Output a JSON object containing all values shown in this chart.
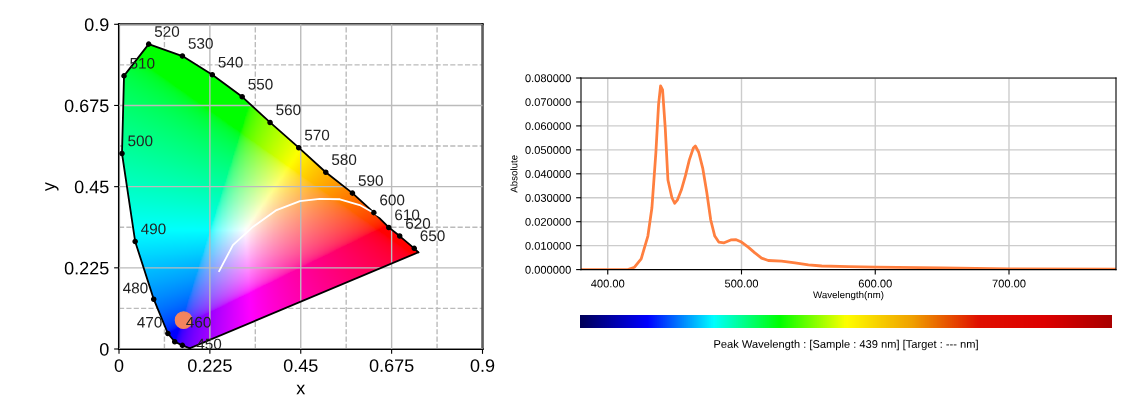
{
  "chart_data": [
    {
      "type": "line",
      "xlabel": "x",
      "ylabel": "y",
      "xlim": [
        0,
        0.9
      ],
      "ylim": [
        0,
        0.9
      ],
      "xticks": [
        0,
        0.225,
        0.45,
        0.675,
        0.9
      ],
      "yticks": [
        0,
        0.225,
        0.45,
        0.675,
        0.9
      ],
      "grid": true,
      "series": [
        {
          "type": "line",
          "color": "#000000",
          "marker": "none",
          "x": [
            0.741,
            0.731,
            0.695,
            0.668,
            0.631,
            0.578,
            0.512,
            0.445,
            0.374,
            0.305,
            0.231,
            0.157,
            0.0735,
            0.0124,
            0.0074
          ],
          "values": [
            0.268,
            0.279,
            0.313,
            0.337,
            0.378,
            0.432,
            0.49,
            0.558,
            0.628,
            0.699,
            0.76,
            0.812,
            0.845,
            0.757,
            0.542
          ]
        },
        {
          "type": "line",
          "color": "#000000",
          "marker": "none",
          "x": [
            0.0074,
            0.04,
            0.086,
            0.121,
            0.138,
            0.157,
            0.175
          ],
          "values": [
            0.542,
            0.298,
            0.138,
            0.043,
            0.02,
            0.01,
            0.002
          ]
        },
        {
          "type": "line",
          "color": "#000000",
          "marker": "none",
          "x": [
            0.175,
            0.741
          ],
          "values": [
            0.002,
            0.268
          ]
        },
        {
          "type": "line",
          "color": "#ffffff",
          "marker": "none",
          "x": [
            0.248,
            0.282,
            0.332,
            0.39,
            0.448,
            0.497,
            0.547,
            0.596,
            0.646
          ],
          "values": [
            0.216,
            0.288,
            0.339,
            0.385,
            0.41,
            0.416,
            0.415,
            0.399,
            0.368
          ]
        },
        {
          "type": "scatter",
          "color": "#000000",
          "marker": "circle",
          "x": [
            0.731,
            0.695,
            0.668,
            0.631,
            0.578,
            0.512,
            0.445,
            0.374,
            0.305,
            0.231,
            0.157,
            0.0735,
            0.0124,
            0.0074,
            0.04,
            0.086,
            0.121,
            0.138,
            0.157
          ],
          "values": [
            0.279,
            0.313,
            0.337,
            0.378,
            0.432,
            0.49,
            0.558,
            0.628,
            0.699,
            0.76,
            0.812,
            0.845,
            0.757,
            0.542,
            0.298,
            0.138,
            0.043,
            0.02,
            0.01
          ]
        },
        {
          "type": "scatter",
          "color": "#f4845f",
          "marker": "circle",
          "x": [
            0.16
          ],
          "values": [
            0.08
          ]
        }
      ],
      "annotations": [
        {
          "text": "520",
          "x": 0.0735,
          "y": 0.845
        },
        {
          "text": "530",
          "x": 0.157,
          "y": 0.812
        },
        {
          "text": "540",
          "x": 0.231,
          "y": 0.76
        },
        {
          "text": "550",
          "x": 0.305,
          "y": 0.699
        },
        {
          "text": "560",
          "x": 0.374,
          "y": 0.628
        },
        {
          "text": "570",
          "x": 0.445,
          "y": 0.558
        },
        {
          "text": "580",
          "x": 0.512,
          "y": 0.49
        },
        {
          "text": "590",
          "x": 0.578,
          "y": 0.432
        },
        {
          "text": "600",
          "x": 0.631,
          "y": 0.378
        },
        {
          "text": "610",
          "x": 0.668,
          "y": 0.337
        },
        {
          "text": "620",
          "x": 0.695,
          "y": 0.313
        },
        {
          "text": "650",
          "x": 0.731,
          "y": 0.279
        },
        {
          "text": "510",
          "x": 0.0124,
          "y": 0.757
        },
        {
          "text": "500",
          "x": 0.0074,
          "y": 0.542
        },
        {
          "text": "490",
          "x": 0.04,
          "y": 0.298
        },
        {
          "text": "480",
          "x": 0.086,
          "y": 0.138
        },
        {
          "text": "470",
          "x": 0.121,
          "y": 0.043
        },
        {
          "text": "460",
          "x": 0.138,
          "y": 0.02
        },
        {
          "text": "450",
          "x": 0.157,
          "y": 0.01
        }
      ]
    },
    {
      "type": "line",
      "xlabel": "Wavelength(nm)",
      "ylabel": "Absolute",
      "xlim": [
        380,
        780
      ],
      "ylim": [
        0,
        0.08
      ],
      "grid": true,
      "marker": "none",
      "line_style": "solid",
      "xticks": [
        {
          "value": 400,
          "label": "400.00"
        },
        {
          "value": 500,
          "label": "500.00"
        },
        {
          "value": 600,
          "label": "600.00"
        },
        {
          "value": 700,
          "label": "700.00"
        }
      ],
      "yticks": [
        {
          "value": 0,
          "label": "0.000000"
        },
        {
          "value": 0.01,
          "label": "0.010000"
        },
        {
          "value": 0.02,
          "label": "0.020000"
        },
        {
          "value": 0.03,
          "label": "0.030000"
        },
        {
          "value": 0.04,
          "label": "0.040000"
        },
        {
          "value": 0.05,
          "label": "0.050000"
        },
        {
          "value": 0.06,
          "label": "0.060000"
        },
        {
          "value": 0.07,
          "label": "0.070000"
        },
        {
          "value": 0.08,
          "label": "0.080000"
        }
      ],
      "series": [
        {
          "color": "#ff7f3f",
          "x": [
            380,
            415,
            420,
            425,
            430,
            433,
            436,
            438,
            439.5,
            441,
            443,
            445,
            448,
            450,
            452,
            455,
            458,
            461,
            464,
            465.5,
            468,
            471,
            474,
            477,
            480,
            483,
            487,
            492,
            496,
            500,
            505,
            510,
            515,
            520,
            530,
            540,
            550,
            560,
            580,
            600,
            650,
            700,
            780
          ],
          "values": [
            0,
            0,
            0.001,
            0.0045,
            0.014,
            0.0257,
            0.049,
            0.069,
            0.0767,
            0.075,
            0.059,
            0.0374,
            0.03,
            0.0277,
            0.029,
            0.0332,
            0.039,
            0.0458,
            0.0508,
            0.0516,
            0.049,
            0.0424,
            0.0324,
            0.0207,
            0.014,
            0.0115,
            0.0112,
            0.0124,
            0.0125,
            0.0115,
            0.0094,
            0.007,
            0.0048,
            0.0038,
            0.0035,
            0.0028,
            0.002,
            0.0015,
            0.0012,
            0.001,
            0.0007,
            0.0003,
            0.0002
          ]
        }
      ],
      "annotations": [
        "Peak Wavelength : [Sample : 439 nm] [Target : --- nm]"
      ]
    }
  ]
}
